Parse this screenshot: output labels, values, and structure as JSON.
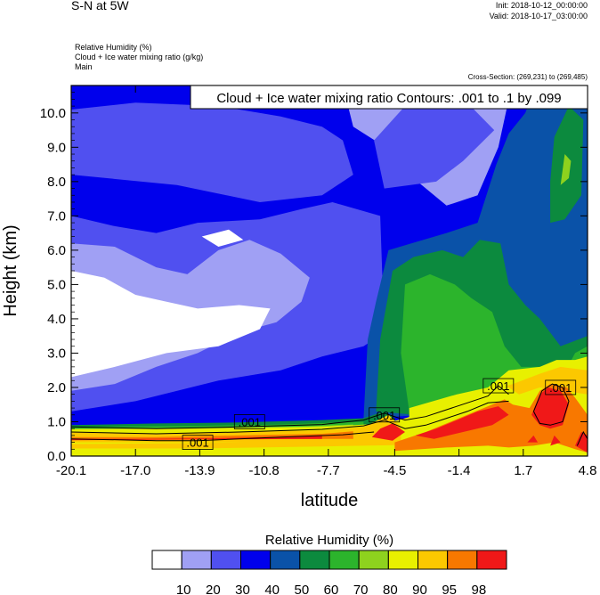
{
  "header": {
    "title": "S-N at 5W",
    "init": "Init: 2018-10-12_00:00:00",
    "valid": "Valid: 2018-10-17_03:00:00",
    "field1": "Relative Humidity   (%)",
    "field2": "Cloud + Ice water mixing ratio   (g/kg)",
    "field3": "Main",
    "cross_section": "Cross-Section: (269,231) to (269,485)"
  },
  "chart_data": {
    "type": "heatmap",
    "title": "Cloud + Ice water mixing ratio Contours: .001 to .1 by .099",
    "xlabel": "latitude",
    "ylabel": "Height (km)",
    "x_ticks": [
      "-20.1",
      "-17.0",
      "-13.9",
      "-10.8",
      "-7.7",
      "-4.5",
      "-1.4",
      "1.7",
      "4.8"
    ],
    "y_ticks": [
      "0.0",
      "1.0",
      "2.0",
      "3.0",
      "4.0",
      "5.0",
      "6.0",
      "7.0",
      "8.0",
      "9.0",
      "10.0"
    ],
    "xlim": [
      -20.1,
      4.8
    ],
    "ylim": [
      0,
      10.8
    ],
    "contour_labels": [
      {
        "text": ".001",
        "x": -11.5,
        "y": 1.0
      },
      {
        "text": ".001",
        "x": -14.0,
        "y": 0.4
      },
      {
        "text": ".001",
        "x": -5.0,
        "y": 1.2
      },
      {
        "text": ".001",
        "x": 0.5,
        "y": 2.05
      },
      {
        "text": ".001",
        "x": 3.5,
        "y": 2.0
      }
    ],
    "colorbar": {
      "title": "Relative Humidity  (%)",
      "labels": [
        "10",
        "20",
        "30",
        "40",
        "50",
        "60",
        "70",
        "80",
        "90",
        "95",
        "98"
      ],
      "colors": [
        "#ffffff",
        "#a0a0f4",
        "#5050f0",
        "#0000ec",
        "#0a52a8",
        "#0c8a3e",
        "#2cb42c",
        "#8ed21e",
        "#e8f000",
        "#fcc800",
        "#f87800",
        "#f01818"
      ]
    }
  }
}
